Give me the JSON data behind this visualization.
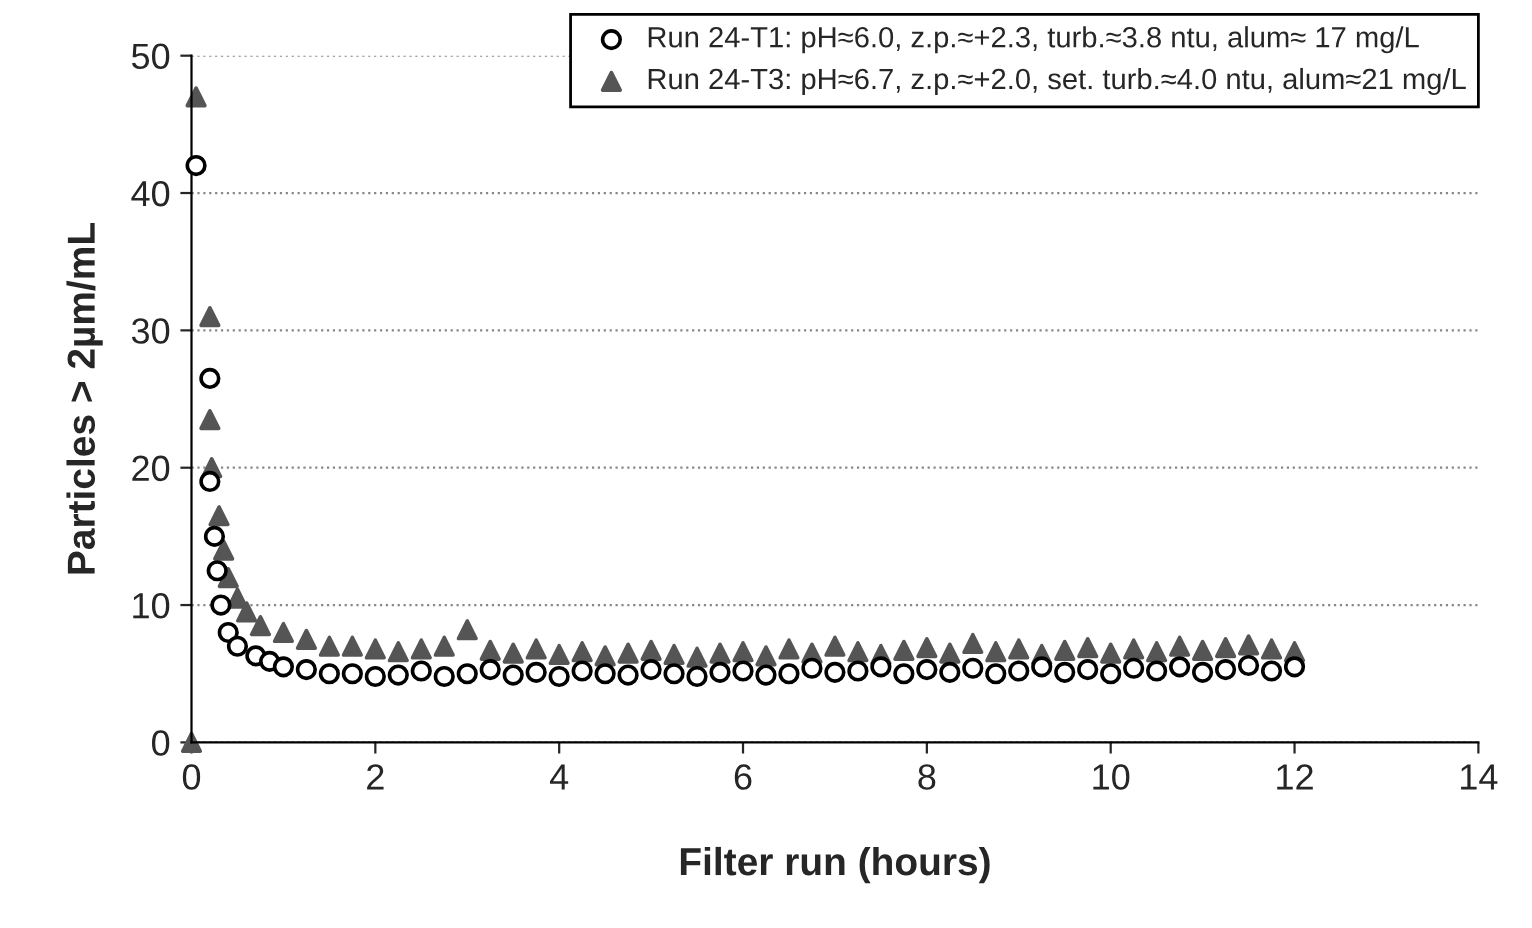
{
  "chart_data": {
    "type": "scatter",
    "xlabel": "Filter run (hours)",
    "ylabel": "Particles > 2µm/mL",
    "xlim": [
      0,
      14
    ],
    "xticks": [
      0,
      2,
      4,
      6,
      8,
      10,
      12,
      14
    ],
    "ylim": [
      0,
      50
    ],
    "yticks": [
      0,
      10,
      20,
      30,
      40,
      50
    ],
    "grid": "y",
    "legend": "top right",
    "series": [
      {
        "name": "Run 24-T1: pH≈6.0, z.p.≈+2.3, turb.≈3.8 ntu, alum≈ 17 mg/L",
        "color": "#000000",
        "marker": "circle",
        "x": [
          0.05,
          0.2,
          0.2,
          0.25,
          0.28,
          0.32,
          0.4,
          0.5,
          0.7,
          0.85,
          1.0,
          1.25,
          1.5,
          1.75,
          2.0,
          2.25,
          2.5,
          2.75,
          3.0,
          3.25,
          3.5,
          3.75,
          4.0,
          4.25,
          4.5,
          4.75,
          5.0,
          5.25,
          5.5,
          5.75,
          6.0,
          6.25,
          6.5,
          6.75,
          7.0,
          7.25,
          7.5,
          7.75,
          8.0,
          8.25,
          8.5,
          8.75,
          9.0,
          9.25,
          9.5,
          9.75,
          10.0,
          10.25,
          10.5,
          10.75,
          11.0,
          11.25,
          11.5,
          11.75,
          12.0
        ],
        "values": [
          42,
          26.5,
          19,
          15,
          12.5,
          10,
          8,
          7,
          6.3,
          5.9,
          5.5,
          5.3,
          5,
          5,
          4.8,
          4.9,
          5.2,
          4.8,
          5.0,
          5.3,
          4.9,
          5.1,
          4.8,
          5.2,
          5.0,
          4.9,
          5.3,
          5.0,
          4.8,
          5.1,
          5.2,
          4.9,
          5.0,
          5.4,
          5.1,
          5.2,
          5.5,
          5.0,
          5.3,
          5.1,
          5.4,
          5.0,
          5.2,
          5.5,
          5.1,
          5.3,
          5.0,
          5.4,
          5.2,
          5.5,
          5.1,
          5.3,
          5.6,
          5.2,
          5.5
        ]
      },
      {
        "name": "Run 24-T3: pH≈6.7, z.p.≈+2.0, set. turb.≈4.0 ntu, alum≈21 mg/L",
        "color": "#555555",
        "marker": "triangle",
        "x": [
          0,
          0.05,
          0.2,
          0.2,
          0.22,
          0.3,
          0.35,
          0.4,
          0.5,
          0.6,
          0.75,
          1.0,
          1.25,
          1.5,
          1.75,
          2.0,
          2.25,
          2.5,
          2.75,
          3.0,
          3.25,
          3.5,
          3.75,
          4.0,
          4.25,
          4.5,
          4.75,
          5.0,
          5.25,
          5.5,
          5.75,
          6.0,
          6.25,
          6.5,
          6.75,
          7.0,
          7.25,
          7.5,
          7.75,
          8.0,
          8.25,
          8.5,
          8.75,
          9.0,
          9.25,
          9.5,
          9.75,
          10.0,
          10.25,
          10.5,
          10.75,
          11.0,
          11.25,
          11.5,
          11.75,
          12.0
        ],
        "values": [
          0,
          47,
          31,
          23.5,
          20,
          16.5,
          14,
          12,
          10.5,
          9.5,
          8.5,
          8,
          7.5,
          7,
          7,
          6.8,
          6.6,
          6.8,
          7.0,
          8.2,
          6.7,
          6.5,
          6.8,
          6.4,
          6.6,
          6.3,
          6.5,
          6.7,
          6.4,
          6.2,
          6.5,
          6.6,
          6.3,
          6.8,
          6.5,
          7.0,
          6.6,
          6.4,
          6.7,
          6.9,
          6.5,
          7.2,
          6.6,
          6.8,
          6.4,
          6.7,
          6.9,
          6.5,
          6.8,
          6.6,
          7.0,
          6.7,
          6.9,
          7.1,
          6.8,
          6.6
        ]
      }
    ]
  }
}
